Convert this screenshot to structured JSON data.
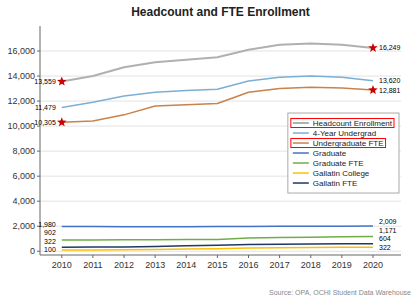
{
  "chart_data": {
    "type": "line",
    "title": "Headcount and FTE Enrollment",
    "source": "Source: OPA, OCHI Student Data Warehouse",
    "x": [
      2010,
      2011,
      2012,
      2013,
      2014,
      2015,
      2016,
      2017,
      2018,
      2019,
      2020
    ],
    "xlim": [
      2009.3,
      2020.9
    ],
    "xticks": [
      2010,
      2011,
      2012,
      2013,
      2014,
      2015,
      2016,
      2017,
      2018,
      2019,
      2020
    ],
    "ylim": [
      -300,
      18000
    ],
    "yticks": [
      0,
      {
        "value": 2000,
        "label": "2,000"
      },
      {
        "value": 4000,
        "label": "4,000"
      },
      {
        "value": 6000,
        "label": "6,000"
      },
      {
        "value": 8000,
        "label": "8,000"
      },
      {
        "value": 10000,
        "label": "10,000"
      },
      {
        "value": 12000,
        "label": "12,000"
      },
      {
        "value": 14000,
        "label": "14,000"
      },
      {
        "value": 16000,
        "label": "16,000"
      }
    ],
    "grid": true,
    "legend": "right",
    "series": [
      {
        "name": "Headcount Enrollment",
        "color": "#b0b0b0",
        "marker": "star",
        "values": [
          13559,
          14000,
          14700,
          15100,
          15300,
          15500,
          16100,
          16500,
          16600,
          16500,
          16249
        ],
        "value_labels": [
          "13,559",
          null,
          null,
          null,
          null,
          null,
          null,
          null,
          null,
          null,
          "16,249"
        ]
      },
      {
        "name": "4-Year Undergrad",
        "color": "#7bafd4",
        "values": [
          11479,
          11900,
          12400,
          12700,
          12850,
          12950,
          13600,
          13900,
          14000,
          13900,
          13620
        ],
        "value_labels": [
          "11,479",
          null,
          null,
          null,
          null,
          null,
          null,
          null,
          null,
          null,
          "13,620"
        ]
      },
      {
        "name": "Undergraduate FTE",
        "color": "#c8824a",
        "marker": "star",
        "values": [
          10305,
          10400,
          10900,
          11600,
          11700,
          11800,
          12700,
          13000,
          13100,
          13050,
          12881
        ],
        "value_labels": [
          "10,305",
          null,
          null,
          null,
          null,
          null,
          null,
          null,
          null,
          null,
          "12,881"
        ]
      },
      {
        "name": "Graduate",
        "color": "#4472c4",
        "values": [
          1980,
          1980,
          1960,
          1960,
          1960,
          1970,
          1980,
          1990,
          2000,
          2005,
          2009
        ],
        "value_labels": [
          "1,980",
          null,
          null,
          null,
          null,
          null,
          null,
          null,
          null,
          null,
          "2,009"
        ]
      },
      {
        "name": "Graduate FTE",
        "color": "#70ad47",
        "values": [
          902,
          900,
          910,
          920,
          930,
          940,
          1050,
          1100,
          1120,
          1150,
          1171
        ],
        "value_labels": [
          "902",
          null,
          null,
          null,
          null,
          null,
          null,
          null,
          null,
          null,
          "1,171"
        ]
      },
      {
        "name": "Gallatin College",
        "color": "#ffc000",
        "values": [
          100,
          105,
          110,
          130,
          170,
          200,
          250,
          280,
          300,
          310,
          322
        ],
        "value_labels": [
          "100",
          null,
          null,
          null,
          null,
          null,
          null,
          null,
          null,
          null,
          "322"
        ]
      },
      {
        "name": "Gallatin FTE",
        "color": "#1f3864",
        "values": [
          322,
          330,
          340,
          380,
          430,
          470,
          530,
          560,
          580,
          590,
          604
        ],
        "value_labels": [
          "322",
          null,
          null,
          null,
          null,
          null,
          null,
          null,
          null,
          null,
          "604"
        ]
      }
    ]
  }
}
